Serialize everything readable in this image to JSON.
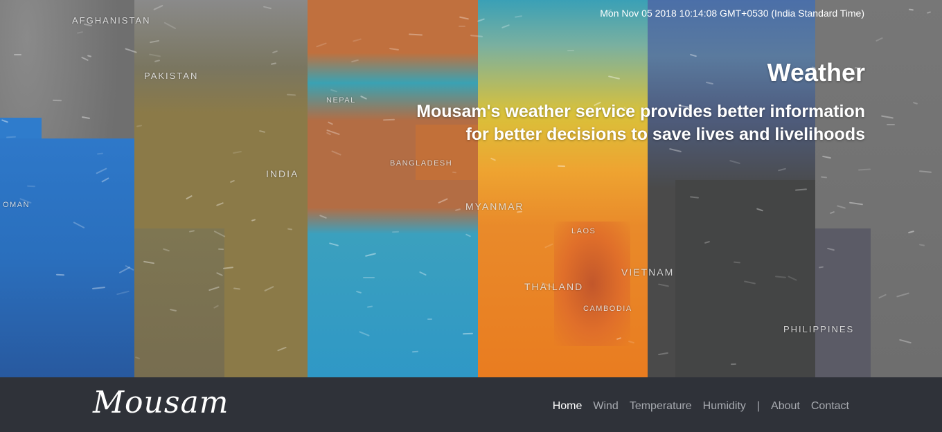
{
  "hero": {
    "datetime": "Mon Nov 05 2018 10:14:08 GMT+0530 (India Standard Time)",
    "title": "Weather",
    "subtitle_line1": "Mousam's weather service provides better information",
    "subtitle_line2": "for better decisions to save lives and livelihoods"
  },
  "map_labels": {
    "afghanistan": "AFGHANISTAN",
    "pakistan": "PAKISTAN",
    "oman": "OMAN",
    "india": "INDIA",
    "nepal": "NEPAL",
    "bangladesh": "BANGLADESH",
    "myanmar": "MYANMAR",
    "laos": "LAOS",
    "thailand": "THAILAND",
    "cambodia": "CAMBODIA",
    "vietnam": "VIETNAM",
    "philippines": "PHILIPPINES"
  },
  "navbar": {
    "logo": "Mousam",
    "items": [
      {
        "label": "Home",
        "active": true
      },
      {
        "label": "Wind"
      },
      {
        "label": "Temperature"
      },
      {
        "label": "Humidity"
      }
    ],
    "separator": "|",
    "secondary": [
      {
        "label": "About"
      },
      {
        "label": "Contact"
      }
    ]
  },
  "colors": {
    "navbar_bg": "#2f3239",
    "nav_link": "#a7aab0",
    "nav_active": "#ffffff"
  }
}
